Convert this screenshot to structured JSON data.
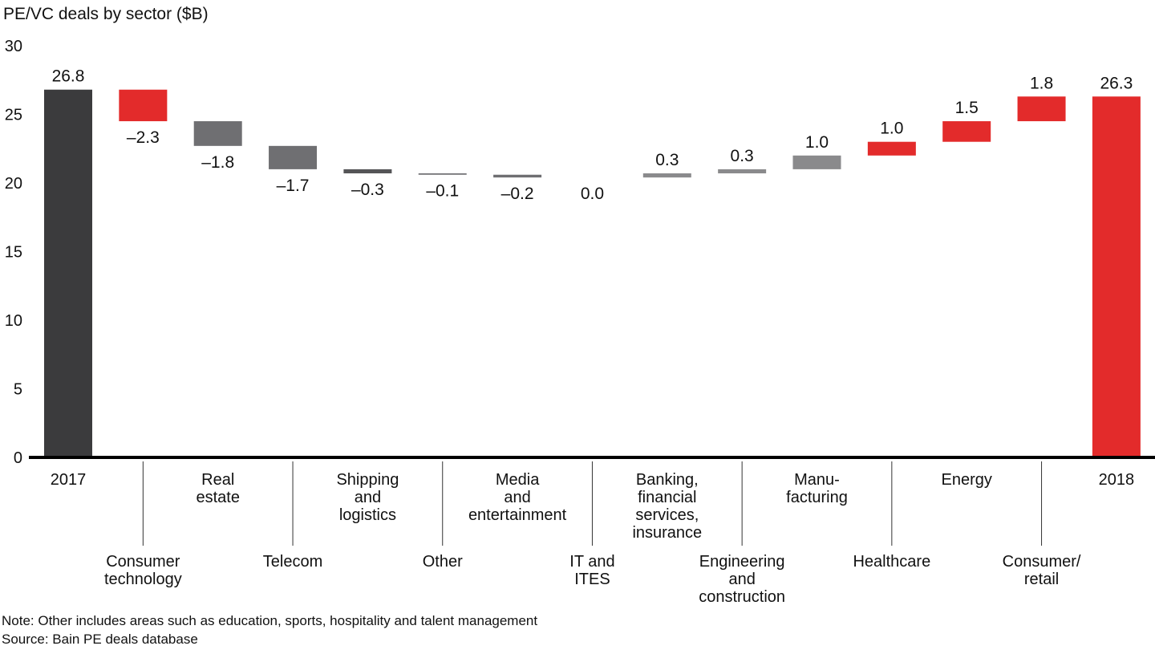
{
  "chart_data": {
    "type": "waterfall",
    "title": "PE/VC deals by sector ($B)",
    "categories": [
      [
        "2017"
      ],
      [
        "Consumer",
        "technology"
      ],
      [
        "Real",
        "estate"
      ],
      [
        "Telecom"
      ],
      [
        "Shipping",
        "and",
        "logistics"
      ],
      [
        "Other"
      ],
      [
        "Media",
        "and",
        "entertainment"
      ],
      [
        "IT and",
        "ITES"
      ],
      [
        "Banking,",
        "financial",
        "services,",
        "insurance"
      ],
      [
        "Engineering",
        "and",
        "construction"
      ],
      [
        "Manu-",
        "facturing"
      ],
      [
        "Healthcare"
      ],
      [
        "Energy"
      ],
      [
        "Consumer/",
        "retail"
      ],
      [
        "2018"
      ]
    ],
    "values": [
      26.8,
      -2.3,
      -1.8,
      -1.7,
      -0.3,
      -0.1,
      -0.2,
      0.0,
      0.3,
      0.3,
      1.0,
      1.0,
      1.5,
      1.8,
      26.3
    ],
    "value_labels": [
      "26.8",
      "–2.3",
      "–1.8",
      "–1.7",
      "–0.3",
      "–0.1",
      "–0.2",
      "0.0",
      "0.3",
      "0.3",
      "1.0",
      "1.0",
      "1.5",
      "1.8",
      "26.3"
    ],
    "colors": [
      "#3b3b3d",
      "#e32b2b",
      "#6f6f72",
      "#6f6f72",
      "#555557",
      "#6f6f72",
      "#6f6f72",
      "#6f6f72",
      "#8a8a8c",
      "#8a8a8c",
      "#8a8a8c",
      "#e32b2b",
      "#e32b2b",
      "#e32b2b",
      "#e32b2b"
    ],
    "ylim": [
      0,
      30
    ],
    "yticks": [
      0,
      5,
      10,
      15,
      20,
      25,
      30
    ],
    "note": "Note: Other includes areas such as education, sports, hospitality and talent management",
    "source": "Source: Bain PE deals database"
  }
}
